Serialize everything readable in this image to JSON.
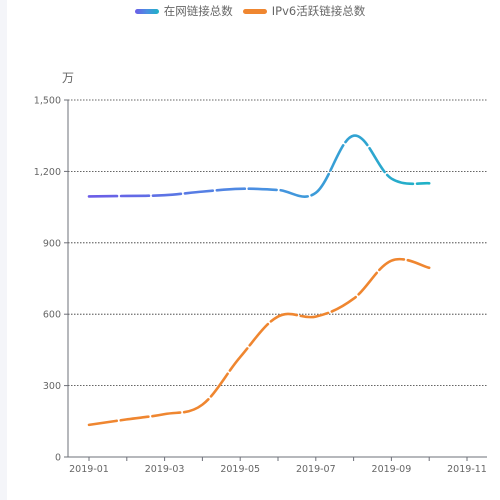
{
  "chart_data": {
    "type": "line",
    "unit": "万",
    "ylim": [
      0,
      1500
    ],
    "yticks": [
      "0",
      "300",
      "600",
      "900",
      "1,200",
      "1,500"
    ],
    "ytick_values": [
      0,
      300,
      600,
      900,
      1200,
      1500
    ],
    "xticks": [
      "2019-01",
      "2019-03",
      "2019-05",
      "2019-07",
      "2019-09",
      "2019-11"
    ],
    "xtick_values": [
      "2019-01",
      "2019-03",
      "2019-05",
      "2019-07",
      "2019-09",
      "2019-11"
    ],
    "grid": true,
    "legend_position": "top-center",
    "series": [
      {
        "name": "在网链接总数",
        "color": "#1fb2c6",
        "gradient": [
          "#6c5ce7",
          "#4a90e2",
          "#1fb2c6"
        ],
        "style": "dashed-smooth",
        "points": [
          {
            "x": "2019-01",
            "y": 1095
          },
          {
            "x": "2019-02",
            "y": 1097
          },
          {
            "x": "2019-03",
            "y": 1100
          },
          {
            "x": "2019-04",
            "y": 1115
          },
          {
            "x": "2019-05",
            "y": 1127
          },
          {
            "x": "2019-06",
            "y": 1122
          },
          {
            "x": "2019-07",
            "y": 1110
          },
          {
            "x": "2019-08",
            "y": 1350
          },
          {
            "x": "2019-09",
            "y": 1170
          },
          {
            "x": "2019-10",
            "y": 1150
          }
        ]
      },
      {
        "name": "IPv6活跃链接总数",
        "color": "#ef8630",
        "style": "dashed-smooth",
        "points": [
          {
            "x": "2019-01",
            "y": 135
          },
          {
            "x": "2019-02",
            "y": 158
          },
          {
            "x": "2019-03",
            "y": 180
          },
          {
            "x": "2019-04",
            "y": 220
          },
          {
            "x": "2019-05",
            "y": 420
          },
          {
            "x": "2019-06",
            "y": 590
          },
          {
            "x": "2019-07",
            "y": 590
          },
          {
            "x": "2019-08",
            "y": 665
          },
          {
            "x": "2019-09",
            "y": 825
          },
          {
            "x": "2019-10",
            "y": 795
          }
        ]
      }
    ]
  }
}
